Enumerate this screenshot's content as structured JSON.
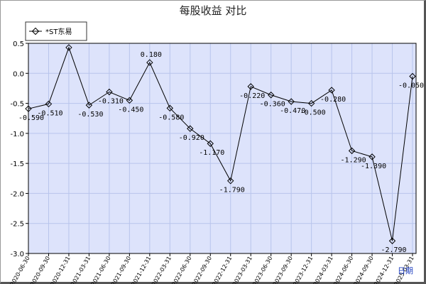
{
  "chart_data": {
    "type": "line",
    "title": "每股收益  对比",
    "xlabel": "日期",
    "ylabel": "",
    "ylim": [
      -3.0,
      0.5
    ],
    "yticks": [
      "0.5",
      "0.0",
      "-0.5",
      "-1.0",
      "-1.5",
      "-2.0",
      "-2.5",
      "-3.0"
    ],
    "grid": true,
    "legend_position": "top-left",
    "categories": [
      "2020-06-30",
      "2020-09-30",
      "2020-12-31",
      "2021-03-31",
      "2021-06-30",
      "2021-09-30",
      "2021-12-31",
      "2022-03-31",
      "2022-06-30",
      "2022-09-30",
      "2022-12-31",
      "2023-03-31",
      "2023-06-30",
      "2023-09-30",
      "2023-12-31",
      "2024-03-31",
      "2024-06-30",
      "2024-09-30",
      "2024-12-31",
      "2025-03-31"
    ],
    "series": [
      {
        "name": "*ST东易",
        "values": [
          -0.59,
          -0.51,
          0.43,
          -0.53,
          -0.31,
          -0.45,
          0.18,
          -0.58,
          -0.92,
          -1.17,
          -1.79,
          -0.22,
          -0.36,
          -0.47,
          -0.5,
          -0.28,
          -1.29,
          -1.39,
          -2.79,
          -0.05
        ],
        "labels": [
          "-0.590",
          "-0.510",
          "",
          "-0.530",
          "-0.310",
          "-0.450",
          "0.180",
          "-0.580",
          "-0.920",
          "-1.170",
          "-1.790",
          "-0.220",
          "-0.360",
          "-0.470",
          "-0.500",
          "-0.280",
          "-1.290",
          "-1.390",
          "-2.790",
          "-0.050"
        ]
      }
    ]
  },
  "colors": {
    "plot_background": "#dde3fb",
    "grid": "#b8c4ec",
    "line": "#000000",
    "axis_label_accent": "#1f3fbf"
  }
}
